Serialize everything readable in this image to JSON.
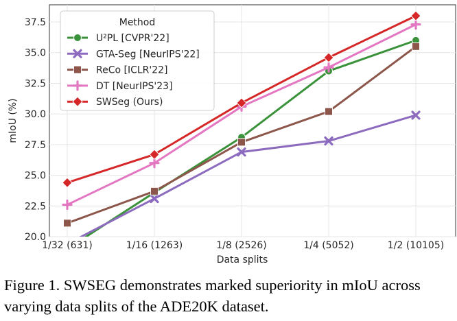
{
  "chart_data": {
    "type": "line",
    "categories": [
      "1/32 (631)",
      "1/16 (1263)",
      "1/8 (2526)",
      "1/4 (5052)",
      "1/2 (10105)"
    ],
    "xlabel": "Data splits",
    "ylabel": "mIoU (%)",
    "ylim": [
      20.0,
      38.9
    ],
    "yticks": [
      "20.0",
      "22.5",
      "25.0",
      "27.5",
      "30.0",
      "32.5",
      "35.0",
      "37.5"
    ],
    "grid": true,
    "legend_title": "Method",
    "legend_position": "top-left",
    "series": [
      {
        "name": "U²PL [CVPR'22]",
        "color": "#3a923a",
        "marker": "circle",
        "values": [
          19.0,
          23.6,
          28.1,
          33.5,
          36.0
        ]
      },
      {
        "name": "GTA-Seg [NeurIPS'22]",
        "color": "#8c6bbf",
        "marker": "x",
        "values": [
          19.4,
          23.1,
          26.9,
          27.8,
          29.9
        ]
      },
      {
        "name": "ReCo [ICLR'22]",
        "color": "#8c564b",
        "marker": "square",
        "values": [
          21.1,
          23.7,
          27.7,
          30.2,
          35.5
        ]
      },
      {
        "name": "DT [NeurIPS'23]",
        "color": "#e377c2",
        "marker": "plus",
        "values": [
          22.6,
          26.0,
          30.6,
          33.8,
          37.3
        ]
      },
      {
        "name": "SWSeg (Ours)",
        "color": "#d62728",
        "marker": "diamond",
        "values": [
          24.4,
          26.7,
          30.9,
          34.6,
          38.0
        ]
      }
    ]
  },
  "caption": {
    "prefix": "Figure 1. ",
    "name_sw": "SWS",
    "name_eg": "EG",
    "rest": " demonstrates marked superiority in mIoU across varying data splits of the ADE20K dataset."
  }
}
